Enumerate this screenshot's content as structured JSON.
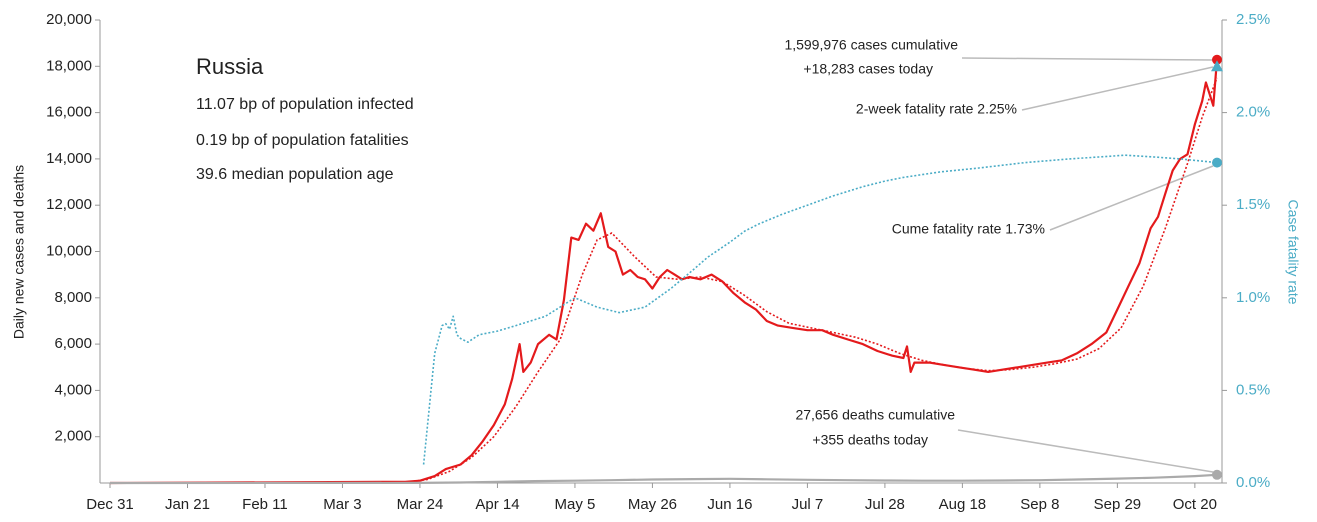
{
  "chart_data": {
    "type": "line",
    "ylabel": "Daily new cases and deaths",
    "y2label": "Case fatality rate",
    "xlim": [
      0,
      300
    ],
    "xticks": [
      {
        "value": 0,
        "label": "Dec 31"
      },
      {
        "value": 21,
        "label": "Jan 21"
      },
      {
        "value": 42,
        "label": "Feb 11"
      },
      {
        "value": 63,
        "label": "Mar 3"
      },
      {
        "value": 84,
        "label": "Mar 24"
      },
      {
        "value": 105,
        "label": "Apr 14"
      },
      {
        "value": 126,
        "label": "May 5"
      },
      {
        "value": 147,
        "label": "May 26"
      },
      {
        "value": 168,
        "label": "Jun 16"
      },
      {
        "value": 189,
        "label": "Jul 7"
      },
      {
        "value": 210,
        "label": "Jul 28"
      },
      {
        "value": 231,
        "label": "Aug 18"
      },
      {
        "value": 252,
        "label": "Sep 8"
      },
      {
        "value": 273,
        "label": "Sep 29"
      },
      {
        "value": 294,
        "label": "Oct 20"
      }
    ],
    "ylim": [
      0,
      20000
    ],
    "yticks": [
      {
        "value": 2000,
        "label": "2,000"
      },
      {
        "value": 4000,
        "label": "4,000"
      },
      {
        "value": 6000,
        "label": "6,000"
      },
      {
        "value": 8000,
        "label": "8,000"
      },
      {
        "value": 10000,
        "label": "10,000"
      },
      {
        "value": 12000,
        "label": "12,000"
      },
      {
        "value": 14000,
        "label": "14,000"
      },
      {
        "value": 16000,
        "label": "16,000"
      },
      {
        "value": 18000,
        "label": "18,000"
      },
      {
        "value": 20000,
        "label": "20,000"
      }
    ],
    "y2lim": [
      0,
      2.5
    ],
    "y2ticks": [
      {
        "value": 0,
        "label": "0.0%"
      },
      {
        "value": 0.5,
        "label": "0.5%"
      },
      {
        "value": 1,
        "label": "1.0%"
      },
      {
        "value": 1.5,
        "label": "1.5%"
      },
      {
        "value": 2,
        "label": "2.0%"
      },
      {
        "value": 2.5,
        "label": "2.5%"
      }
    ],
    "series": [
      {
        "color": "#e41a1c",
        "style": "solid",
        "marker": "circle",
        "x": [
          0,
          80,
          84,
          88,
          91,
          95,
          98,
          101,
          104,
          107,
          109,
          111,
          112,
          114,
          116,
          119,
          121,
          123,
          125,
          127,
          129,
          131,
          133,
          135,
          137,
          139,
          141,
          143,
          145,
          147,
          149,
          151,
          153,
          155,
          157,
          160,
          163,
          166,
          169,
          172,
          175,
          178,
          181,
          185,
          189,
          193,
          196,
          200,
          204,
          208,
          212,
          215,
          216,
          217,
          218,
          222,
          226,
          230,
          234,
          238,
          242,
          246,
          250,
          254,
          258,
          262,
          266,
          270,
          273,
          276,
          279,
          282,
          284,
          286,
          288,
          290,
          292,
          294,
          296,
          297,
          298,
          299,
          300
        ],
        "values": [
          0,
          50,
          100,
          300,
          600,
          800,
          1200,
          1800,
          2500,
          3400,
          4500,
          6000,
          4800,
          5200,
          6000,
          6400,
          6200,
          7900,
          10600,
          10500,
          11200,
          10900,
          11650,
          10200,
          10000,
          9000,
          9200,
          8900,
          8800,
          8400,
          8900,
          9200,
          9000,
          8800,
          8900,
          8800,
          9000,
          8700,
          8200,
          7800,
          7500,
          7000,
          6800,
          6700,
          6600,
          6600,
          6400,
          6200,
          6000,
          5700,
          5500,
          5400,
          5900,
          4800,
          5200,
          5200,
          5100,
          5000,
          4900,
          4800,
          4900,
          5000,
          5100,
          5200,
          5300,
          5600,
          6000,
          6500,
          7500,
          8500,
          9500,
          11000,
          11500,
          12500,
          13500,
          14000,
          14200,
          15500,
          16500,
          17300,
          16800,
          16300,
          18283
        ]
      },
      {
        "color": "#e41a1c",
        "style": "dotted",
        "x": [
          0,
          80,
          86,
          92,
          98,
          104,
          110,
          116,
          122,
          128,
          132,
          136,
          142,
          148,
          154,
          160,
          166,
          172,
          178,
          184,
          190,
          196,
          202,
          208,
          214,
          220,
          226,
          232,
          238,
          244,
          250,
          256,
          262,
          268,
          274,
          280,
          286,
          292,
          296,
          300
        ],
        "values": [
          0,
          30,
          150,
          500,
          1100,
          2000,
          3300,
          4800,
          6200,
          9000,
          10500,
          10800,
          9800,
          8900,
          8800,
          8900,
          8700,
          8100,
          7400,
          6900,
          6700,
          6500,
          6300,
          6000,
          5600,
          5300,
          5100,
          4950,
          4850,
          4900,
          5000,
          5150,
          5350,
          5800,
          6700,
          8500,
          11000,
          13800,
          15800,
          17500
        ]
      },
      {
        "color": "#aaaaaa",
        "style": "solid",
        "marker": "circle",
        "x": [
          0,
          84,
          95,
          105,
          115,
          126,
          136,
          147,
          158,
          168,
          178,
          189,
          200,
          210,
          220,
          231,
          242,
          252,
          262,
          273,
          283,
          294,
          300
        ],
        "values": [
          0,
          5,
          20,
          50,
          80,
          100,
          120,
          150,
          170,
          180,
          160,
          140,
          120,
          110,
          100,
          100,
          110,
          120,
          150,
          190,
          230,
          300,
          355
        ]
      },
      {
        "color": "#4bacc6",
        "style": "dotted",
        "axis": "y2",
        "marker": "circle",
        "x": [
          85,
          87,
          88,
          90,
          91,
          92,
          93,
          94,
          95,
          97,
          100,
          105,
          110,
          118,
          126,
          132,
          138,
          145,
          152,
          158,
          162,
          168,
          172,
          176,
          182,
          189,
          196,
          204,
          210,
          215,
          225,
          235,
          248,
          260,
          268,
          275,
          283,
          290,
          300
        ],
        "values": [
          0.1,
          0.5,
          0.7,
          0.85,
          0.86,
          0.83,
          0.9,
          0.8,
          0.78,
          0.76,
          0.8,
          0.82,
          0.85,
          0.9,
          1.0,
          0.95,
          0.92,
          0.95,
          1.05,
          1.15,
          1.22,
          1.3,
          1.36,
          1.4,
          1.45,
          1.5,
          1.55,
          1.6,
          1.63,
          1.65,
          1.68,
          1.7,
          1.73,
          1.75,
          1.76,
          1.77,
          1.76,
          1.75,
          1.73
        ]
      },
      {
        "color": "#4bacc6",
        "style": "none",
        "axis": "y2",
        "marker": "triangle",
        "x": [
          300
        ],
        "values": [
          2.25
        ]
      }
    ],
    "annotations": [
      "1,599,976 cases cumulative",
      "+18,283 cases today",
      "2-week fatality rate 2.25%",
      "Cume fatality rate 1.73%",
      "27,656 deaths cumulative",
      "+355 deaths today"
    ],
    "info": {
      "title": "Russia",
      "lines": [
        "11.07 bp of population infected",
        "0.19 bp of population fatalities",
        "39.6 median population age"
      ]
    }
  }
}
